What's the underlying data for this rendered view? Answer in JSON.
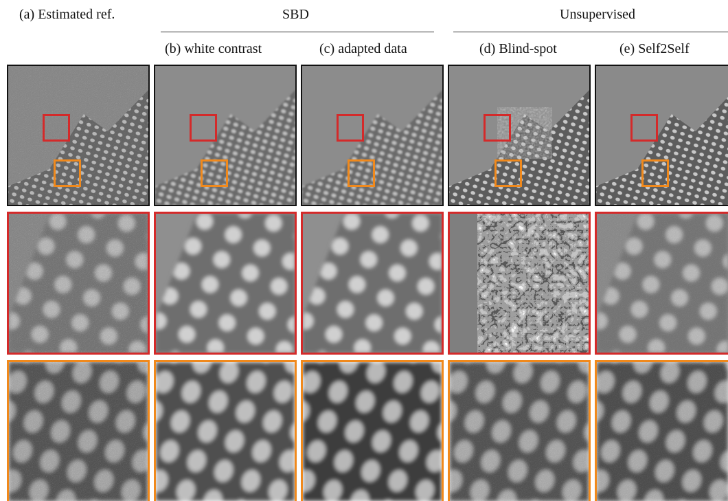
{
  "figure": {
    "group_labels": {
      "sbd": "SBD",
      "unsupervised": "Unsupervised"
    },
    "column_labels": {
      "a": "(a) Estimated ref.",
      "b": "(b) white contrast",
      "c": "(c) adapted data",
      "d": "(d) Blind-spot",
      "e": "(e) Self2Self"
    },
    "colors": {
      "red_roi": "#d42a2a",
      "orange_roi": "#f0891c",
      "panel_border": "#111111"
    }
  }
}
